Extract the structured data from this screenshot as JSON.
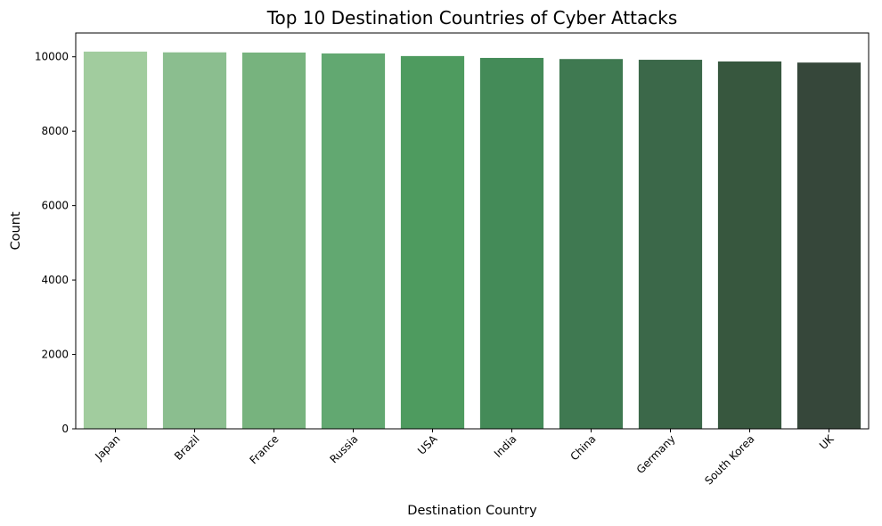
{
  "chart_data": {
    "type": "bar",
    "title": "Top 10 Destination Countries of Cyber Attacks",
    "xlabel": "Destination Country",
    "ylabel": "Count",
    "categories": [
      "Japan",
      "Brazil",
      "France",
      "Russia",
      "USA",
      "India",
      "China",
      "Germany",
      "South Korea",
      "UK"
    ],
    "values": [
      10140,
      10120,
      10115,
      10090,
      10020,
      9970,
      9940,
      9920,
      9875,
      9845
    ],
    "ylim": [
      0,
      10640
    ],
    "yticks": [
      0,
      2000,
      4000,
      6000,
      8000,
      10000
    ],
    "yticklabels": [
      "0",
      "2000",
      "4000",
      "6000",
      "8000",
      "10000"
    ],
    "grid": false,
    "legend": "none",
    "colors": [
      "#a1cc9e",
      "#8bbe8f",
      "#77b37e",
      "#62a871",
      "#4e9b5f",
      "#448b58",
      "#3f7951",
      "#3b6849",
      "#37573e",
      "#36473a"
    ]
  }
}
